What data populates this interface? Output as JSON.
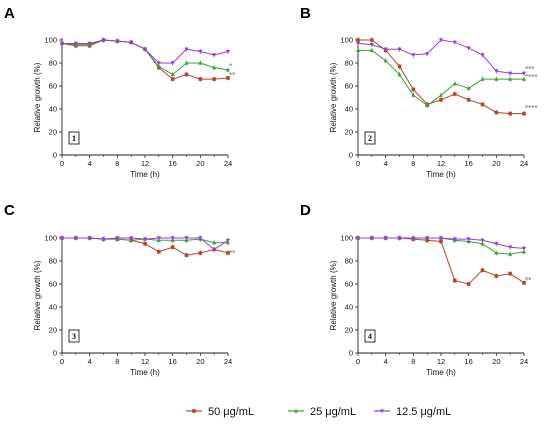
{
  "chart_data": [
    {
      "panel_label": "A",
      "box_label": "1",
      "type": "line",
      "xlabel": "Time (h)",
      "ylabel": "Relative growth (%)",
      "xlim": [
        0,
        24
      ],
      "ylim": [
        0,
        100
      ],
      "xticks": [
        0,
        4,
        8,
        12,
        16,
        20,
        24
      ],
      "yticks": [
        0,
        20,
        40,
        60,
        80,
        100
      ],
      "x": [
        0,
        2,
        4,
        6,
        8,
        10,
        12,
        14,
        16,
        18,
        20,
        22,
        24
      ],
      "series": [
        {
          "name": "50 μg/mL",
          "values": [
            97,
            95,
            95,
            100,
            99,
            98,
            92,
            76,
            66,
            70,
            66,
            66,
            67
          ]
        },
        {
          "name": "25 μg/mL",
          "values": [
            97,
            96,
            96,
            100,
            99,
            98,
            92,
            77,
            70,
            80,
            80,
            76,
            74
          ]
        },
        {
          "name": "12.5 μg/mL",
          "values": [
            97,
            97,
            97,
            100,
            99,
            98,
            92,
            80,
            80,
            92,
            90,
            87,
            90
          ]
        }
      ],
      "annotations": [
        "*",
        "**"
      ]
    },
    {
      "panel_label": "B",
      "box_label": "2",
      "type": "line",
      "xlabel": "Time (h)",
      "ylabel": "Relative growth (%)",
      "xlim": [
        0,
        24
      ],
      "ylim": [
        0,
        100
      ],
      "xticks": [
        0,
        4,
        8,
        12,
        16,
        20,
        24
      ],
      "yticks": [
        0,
        20,
        40,
        60,
        80,
        100
      ],
      "x": [
        0,
        2,
        4,
        6,
        8,
        10,
        12,
        14,
        16,
        18,
        20,
        22,
        24
      ],
      "series": [
        {
          "name": "50 μg/mL",
          "values": [
            100,
            100,
            91,
            77,
            57,
            44,
            48,
            53,
            48,
            44,
            37,
            36,
            36
          ]
        },
        {
          "name": "25 μg/mL",
          "values": [
            91,
            91,
            82,
            70,
            52,
            43,
            52,
            62,
            58,
            66,
            66,
            66,
            66
          ]
        },
        {
          "name": "12.5 μg/mL",
          "values": [
            97,
            96,
            92,
            92,
            87,
            88,
            100,
            98,
            93,
            87,
            73,
            71,
            71
          ]
        }
      ],
      "annotations": [
        "***",
        "****",
        "****"
      ]
    },
    {
      "panel_label": "C",
      "box_label": "3",
      "type": "line",
      "xlabel": "Time (h)",
      "ylabel": "Relative growth (%)",
      "xlim": [
        0,
        24
      ],
      "ylim": [
        0,
        100
      ],
      "xticks": [
        0,
        4,
        8,
        12,
        16,
        20,
        24
      ],
      "yticks": [
        0,
        20,
        40,
        60,
        80,
        100
      ],
      "x": [
        0,
        2,
        4,
        6,
        8,
        10,
        12,
        14,
        16,
        18,
        20,
        22,
        24
      ],
      "series": [
        {
          "name": "50 μg/mL",
          "values": [
            100,
            100,
            100,
            99,
            99,
            98,
            95,
            88,
            92,
            85,
            87,
            90,
            87
          ]
        },
        {
          "name": "25 μg/mL",
          "values": [
            100,
            100,
            100,
            99,
            99,
            98,
            99,
            98,
            98,
            98,
            99,
            96,
            96
          ]
        },
        {
          "name": "12.5 μg/mL",
          "values": [
            100,
            100,
            100,
            99,
            100,
            100,
            99,
            100,
            100,
            100,
            100,
            90,
            98
          ]
        }
      ],
      "annotations": [
        "**"
      ]
    },
    {
      "panel_label": "D",
      "box_label": "4",
      "type": "line",
      "xlabel": "Time (h)",
      "ylabel": "Relative growth (%)",
      "xlim": [
        0,
        24
      ],
      "ylim": [
        0,
        100
      ],
      "xticks": [
        0,
        4,
        8,
        12,
        16,
        20,
        24
      ],
      "yticks": [
        0,
        20,
        40,
        60,
        80,
        100
      ],
      "x": [
        0,
        2,
        4,
        6,
        8,
        10,
        12,
        14,
        16,
        18,
        20,
        22,
        24
      ],
      "series": [
        {
          "name": "50 μg/mL",
          "values": [
            100,
            100,
            100,
            100,
            99,
            98,
            97,
            63,
            60,
            72,
            67,
            69,
            61
          ]
        },
        {
          "name": "25 μg/mL",
          "values": [
            100,
            100,
            100,
            100,
            100,
            100,
            100,
            98,
            97,
            95,
            87,
            86,
            88
          ]
        },
        {
          "name": "12.5 μg/mL",
          "values": [
            100,
            100,
            100,
            100,
            100,
            100,
            100,
            99,
            99,
            98,
            95,
            92,
            91
          ]
        }
      ],
      "annotations": [
        "**"
      ]
    }
  ],
  "legend": {
    "position": "bottom",
    "items": [
      {
        "label": "50 μg/mL",
        "color": "#b5462b"
      },
      {
        "label": "25 μg/mL",
        "color": "#3aa23a"
      },
      {
        "label": "12.5 μg/mL",
        "color": "#9a3ed4"
      }
    ]
  },
  "colors": {
    "axis": "#222222",
    "significance": "#666666"
  }
}
